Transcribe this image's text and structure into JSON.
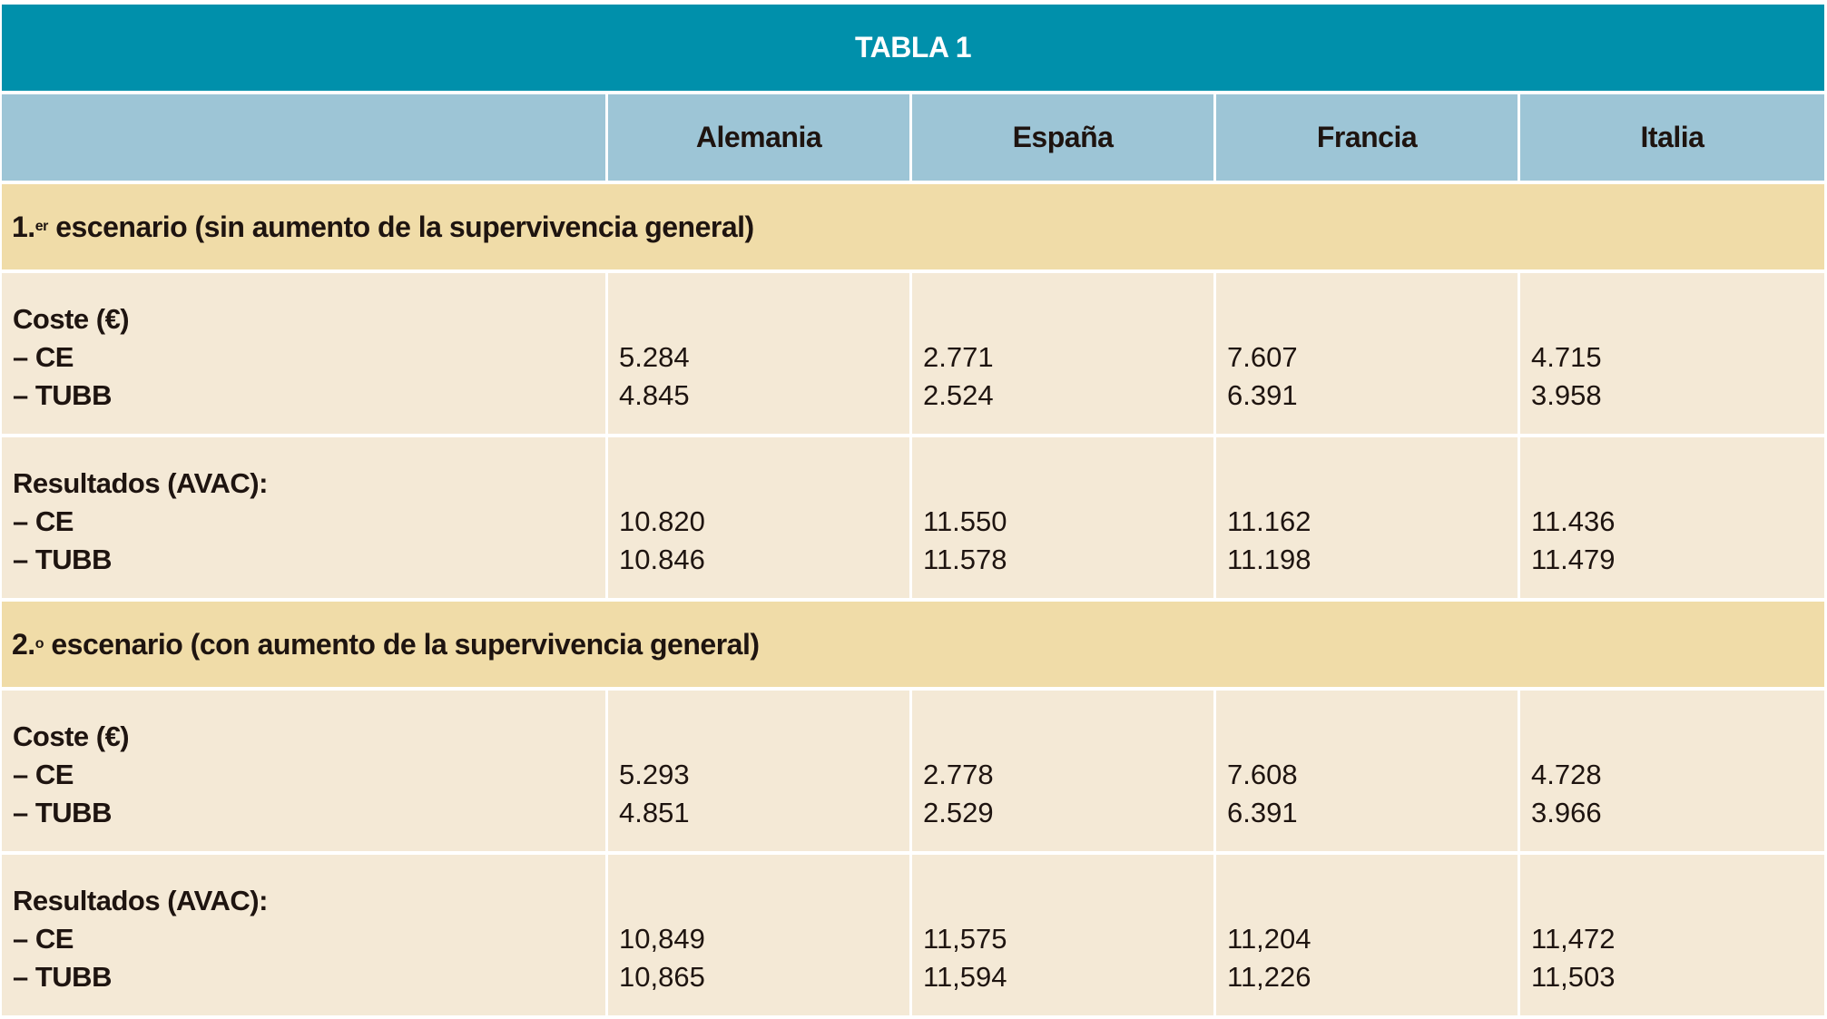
{
  "title": "TABLA 1",
  "columns": [
    "Alemania",
    "España",
    "Francia",
    "Italia"
  ],
  "sections": [
    {
      "label_main": "1.",
      "label_sup": "er",
      "label_rest": " escenario (sin aumento de la supervivencia general)",
      "groups": [
        {
          "heading": "Coste (€)",
          "rows": [
            {
              "label": "– CE",
              "values": [
                "5.284",
                "2.771",
                "7.607",
                "4.715"
              ]
            },
            {
              "label": "– TUBB",
              "values": [
                "4.845",
                "2.524",
                "6.391",
                "3.958"
              ]
            }
          ]
        },
        {
          "heading": "Resultados (AVAC):",
          "rows": [
            {
              "label": "– CE",
              "values": [
                "10.820",
                "11.550",
                "11.162",
                "11.436"
              ]
            },
            {
              "label": "– TUBB",
              "values": [
                "10.846",
                "11.578",
                "11.198",
                "11.479"
              ]
            }
          ]
        }
      ]
    },
    {
      "label_main": "2.",
      "label_sup": "o",
      "label_rest": " escenario (con aumento de la supervivencia general)",
      "groups": [
        {
          "heading": "Coste (€)",
          "rows": [
            {
              "label": "– CE",
              "values": [
                "5.293",
                "2.778",
                "7.608",
                "4.728"
              ]
            },
            {
              "label": "– TUBB",
              "values": [
                "4.851",
                "2.529",
                "6.391",
                "3.966"
              ]
            }
          ]
        },
        {
          "heading": "Resultados (AVAC):",
          "rows": [
            {
              "label": "– CE",
              "values": [
                "10,849",
                "11,575",
                "11,204",
                "11,472"
              ]
            },
            {
              "label": "– TUBB",
              "values": [
                "10,865",
                "11,594",
                "11,226",
                "11,503"
              ]
            }
          ]
        }
      ]
    }
  ]
}
